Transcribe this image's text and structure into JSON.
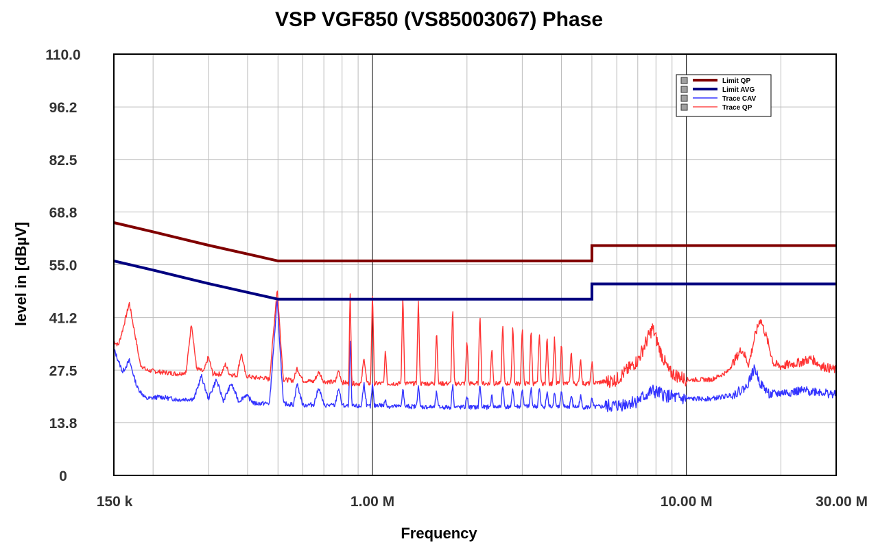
{
  "chart_data": {
    "type": "line",
    "title": "VSP VGF850 (VS85003067) Phase",
    "xlabel": "Frequency",
    "ylabel": "level in [dBµV]",
    "x_scale": "log",
    "xlim": [
      150000,
      30000000
    ],
    "ylim": [
      0,
      110
    ],
    "y_ticks": [
      {
        "value": 0,
        "label": "0"
      },
      {
        "value": 13.8,
        "label": "13.8"
      },
      {
        "value": 27.5,
        "label": "27.5"
      },
      {
        "value": 41.2,
        "label": "41.2"
      },
      {
        "value": 55.0,
        "label": "55.0"
      },
      {
        "value": 68.8,
        "label": "68.8"
      },
      {
        "value": 82.5,
        "label": "82.5"
      },
      {
        "value": 96.2,
        "label": "96.2"
      },
      {
        "value": 110.0,
        "label": "110.0"
      }
    ],
    "x_ticks": [
      {
        "value": 150000,
        "label": "150 k"
      },
      {
        "value": 1000000,
        "label": "1.00 M"
      },
      {
        "value": 10000000,
        "label": "10.00 M"
      },
      {
        "value": 30000000,
        "label": "30.00 M"
      }
    ],
    "grid": true,
    "legend_position": "top-right",
    "series": [
      {
        "name": "Limit QP",
        "color": "#800000",
        "points": [
          [
            150000,
            66
          ],
          [
            200000,
            63.6
          ],
          [
            300000,
            60.1
          ],
          [
            400000,
            57.8
          ],
          [
            500000,
            56
          ],
          [
            5000000,
            56
          ],
          [
            5000000,
            60
          ],
          [
            30000000,
            60
          ]
        ]
      },
      {
        "name": "Limit AVG",
        "color": "#000080",
        "points": [
          [
            150000,
            56
          ],
          [
            200000,
            53.6
          ],
          [
            300000,
            50.1
          ],
          [
            400000,
            47.8
          ],
          [
            500000,
            46
          ],
          [
            5000000,
            46
          ],
          [
            5000000,
            50
          ],
          [
            30000000,
            50
          ]
        ]
      },
      {
        "name": "Trace CAV",
        "color": "#3333ff",
        "points": [
          [
            150000,
            33
          ],
          [
            160000,
            27
          ],
          [
            168000,
            30
          ],
          [
            178000,
            23
          ],
          [
            190000,
            20
          ],
          [
            210000,
            20.5
          ],
          [
            240000,
            19.8
          ],
          [
            270000,
            20
          ],
          [
            285000,
            26
          ],
          [
            300000,
            20
          ],
          [
            318000,
            25
          ],
          [
            335000,
            19.5
          ],
          [
            355000,
            24
          ],
          [
            375000,
            19.3
          ],
          [
            395000,
            21
          ],
          [
            420000,
            18.8
          ],
          [
            470000,
            18.8
          ],
          [
            497000,
            46
          ],
          [
            520000,
            18.7
          ],
          [
            560000,
            18.5
          ],
          [
            575000,
            24
          ],
          [
            600000,
            18.3
          ],
          [
            650000,
            18.5
          ],
          [
            675000,
            23
          ],
          [
            700000,
            18.3
          ],
          [
            760000,
            18.3
          ],
          [
            780000,
            23
          ],
          [
            800000,
            18.3
          ],
          [
            840000,
            18
          ],
          [
            848000,
            37
          ],
          [
            860000,
            18
          ],
          [
            920000,
            18
          ],
          [
            940000,
            24
          ],
          [
            960000,
            18
          ],
          [
            1000000,
            18
          ],
          [
            1050000,
            18.5
          ],
          [
            1100000,
            18
          ],
          [
            1300000,
            18
          ],
          [
            1600000,
            17.8
          ],
          [
            2200000,
            17.8
          ],
          [
            3000000,
            18
          ],
          [
            4000000,
            18
          ],
          [
            5000000,
            17.8
          ],
          [
            6000000,
            18.2
          ],
          [
            7000000,
            19.5
          ],
          [
            7800000,
            22
          ],
          [
            8500000,
            21
          ],
          [
            9500000,
            20
          ],
          [
            12000000,
            20
          ],
          [
            14000000,
            21
          ],
          [
            15500000,
            23
          ],
          [
            16500000,
            28
          ],
          [
            17200000,
            24
          ],
          [
            18500000,
            21
          ],
          [
            20000000,
            21.5
          ],
          [
            23000000,
            22
          ],
          [
            26000000,
            22
          ],
          [
            30000000,
            21
          ]
        ]
      },
      {
        "name": "Trace QP",
        "color": "#ff3333",
        "points": [
          [
            150000,
            35
          ],
          [
            155000,
            34
          ],
          [
            160000,
            38
          ],
          [
            168000,
            45
          ],
          [
            175000,
            37
          ],
          [
            182000,
            29
          ],
          [
            190000,
            27.5
          ],
          [
            210000,
            27
          ],
          [
            240000,
            26.5
          ],
          [
            255000,
            27
          ],
          [
            265000,
            40
          ],
          [
            275000,
            28
          ],
          [
            290000,
            27
          ],
          [
            300000,
            31
          ],
          [
            310000,
            26.5
          ],
          [
            330000,
            26.5
          ],
          [
            340000,
            29
          ],
          [
            350000,
            26.5
          ],
          [
            370000,
            26
          ],
          [
            382000,
            32
          ],
          [
            395000,
            26
          ],
          [
            420000,
            25.5
          ],
          [
            450000,
            25.5
          ],
          [
            470000,
            25
          ],
          [
            497000,
            49
          ],
          [
            520000,
            25
          ],
          [
            560000,
            24.8
          ],
          [
            575000,
            28
          ],
          [
            600000,
            24.8
          ],
          [
            650000,
            24.5
          ],
          [
            675000,
            27
          ],
          [
            700000,
            24.5
          ],
          [
            760000,
            24.3
          ],
          [
            780000,
            27.5
          ],
          [
            800000,
            24.3
          ],
          [
            840000,
            24
          ],
          [
            848000,
            49
          ],
          [
            860000,
            24
          ],
          [
            920000,
            24
          ],
          [
            940000,
            31
          ],
          [
            960000,
            24
          ],
          [
            1000000,
            24
          ],
          [
            1050000,
            24
          ],
          [
            1100000,
            24
          ],
          [
            1300000,
            24
          ],
          [
            1600000,
            24
          ],
          [
            2200000,
            24
          ],
          [
            3000000,
            24
          ],
          [
            4000000,
            24
          ],
          [
            5000000,
            24
          ],
          [
            6000000,
            25
          ],
          [
            7000000,
            30
          ],
          [
            7800000,
            38.5
          ],
          [
            8300000,
            32
          ],
          [
            8800000,
            27
          ],
          [
            10000000,
            25
          ],
          [
            12000000,
            25
          ],
          [
            13500000,
            27
          ],
          [
            15000000,
            33
          ],
          [
            15800000,
            29
          ],
          [
            16500000,
            36
          ],
          [
            17200000,
            41
          ],
          [
            18000000,
            36
          ],
          [
            19000000,
            29
          ],
          [
            20000000,
            28.5
          ],
          [
            23000000,
            29.5
          ],
          [
            25000000,
            30.5
          ],
          [
            27000000,
            28.5
          ],
          [
            30000000,
            27.5
          ]
        ]
      }
    ],
    "harmonic_peaks": [
      {
        "freq": 1000000,
        "qp": 49,
        "avg": 24
      },
      {
        "freq": 1100000,
        "qp": 33,
        "avg": 20
      },
      {
        "freq": 1250000,
        "qp": 48,
        "avg": 23
      },
      {
        "freq": 1400000,
        "qp": 46.5,
        "avg": 24
      },
      {
        "freq": 1600000,
        "qp": 38.5,
        "avg": 22
      },
      {
        "freq": 1800000,
        "qp": 44.5,
        "avg": 24
      },
      {
        "freq": 2000000,
        "qp": 36,
        "avg": 21
      },
      {
        "freq": 2200000,
        "qp": 43.5,
        "avg": 24
      },
      {
        "freq": 2400000,
        "qp": 34,
        "avg": 21
      },
      {
        "freq": 2600000,
        "qp": 40.5,
        "avg": 24
      },
      {
        "freq": 2800000,
        "qp": 40,
        "avg": 23
      },
      {
        "freq": 3000000,
        "qp": 39.5,
        "avg": 23
      },
      {
        "freq": 3200000,
        "qp": 38.5,
        "avg": 23
      },
      {
        "freq": 3400000,
        "qp": 38,
        "avg": 23
      },
      {
        "freq": 3600000,
        "qp": 37,
        "avg": 22
      },
      {
        "freq": 3800000,
        "qp": 36,
        "avg": 22
      },
      {
        "freq": 4000000,
        "qp": 35,
        "avg": 22
      },
      {
        "freq": 4300000,
        "qp": 33,
        "avg": 21
      },
      {
        "freq": 4600000,
        "qp": 31,
        "avg": 21
      },
      {
        "freq": 5000000,
        "qp": 30,
        "avg": 20
      }
    ]
  }
}
